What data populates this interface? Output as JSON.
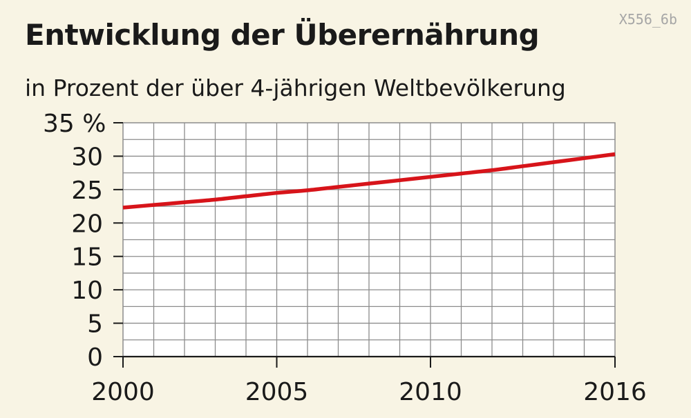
{
  "header": {
    "code": "X556_6b",
    "title": "Entwicklung der Überernährung",
    "subtitle": "in Prozent der über 4-jährigen Weltbevölkerung"
  },
  "colors": {
    "background": "#f8f4e4",
    "plot_background": "#ffffff",
    "grid": "#8c8c8c",
    "line": "#d7141a",
    "text": "#1a1a1a"
  },
  "chart_data": {
    "type": "line",
    "title": "Entwicklung der Überernährung",
    "subtitle": "in Prozent der über 4-jährigen Weltbevölkerung",
    "xlabel": "",
    "ylabel": "",
    "xlim": [
      2000,
      2016
    ],
    "ylim": [
      0,
      35
    ],
    "x_ticks": [
      2000,
      2005,
      2010,
      2016
    ],
    "x_tick_labels": [
      "2000",
      "2005",
      "2010",
      "2016"
    ],
    "y_ticks": [
      0,
      5,
      10,
      15,
      20,
      25,
      30,
      35
    ],
    "y_tick_labels": [
      "0",
      "5",
      "10",
      "15",
      "20",
      "25",
      "30",
      "35 %"
    ],
    "grid": true,
    "series": [
      {
        "color": "#d7141a",
        "x": [
          2000,
          2001,
          2002,
          2003,
          2004,
          2005,
          2006,
          2007,
          2008,
          2009,
          2010,
          2011,
          2012,
          2013,
          2014,
          2015,
          2016
        ],
        "values": [
          22.3,
          22.7,
          23.1,
          23.5,
          24.0,
          24.5,
          24.9,
          25.4,
          25.9,
          26.4,
          26.9,
          27.4,
          27.9,
          28.5,
          29.1,
          29.7,
          30.3
        ]
      }
    ]
  }
}
